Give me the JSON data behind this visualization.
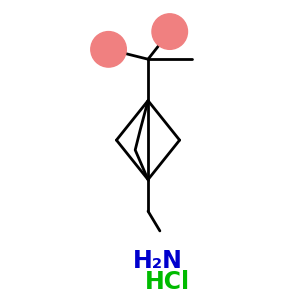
{
  "background_color": "#ffffff",
  "bond_color": "#000000",
  "methyl_circle_color": "#F08080",
  "nh2_color": "#0000CD",
  "hcl_color": "#00BB00",
  "nh2_text": "H₂N",
  "hcl_text": "HCl",
  "figsize": [
    3.0,
    3.0
  ],
  "dpi": 100
}
